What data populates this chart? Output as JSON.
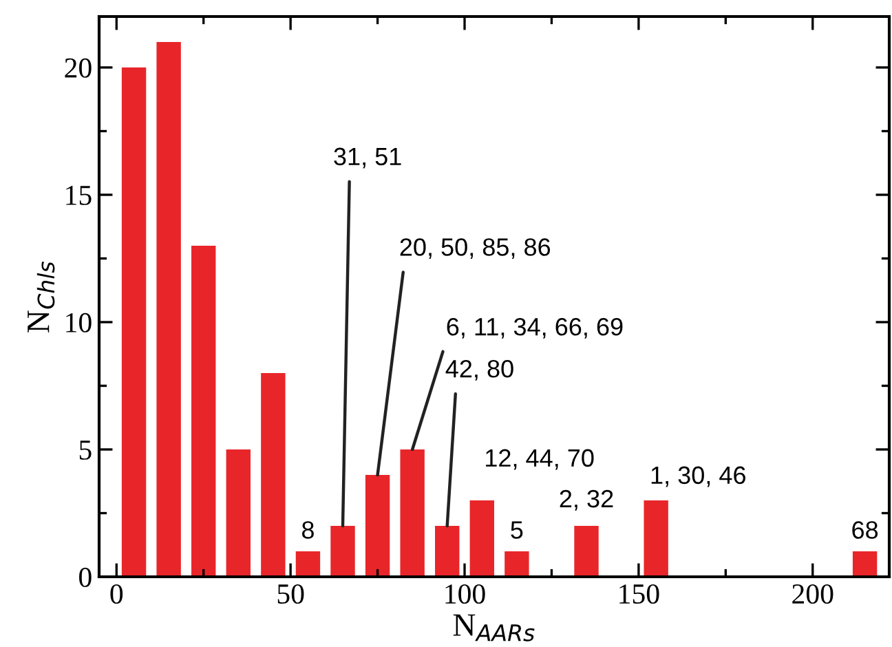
{
  "chart_data": {
    "type": "histogram",
    "xlabel": "N$_{AARs}$",
    "ylabel": "N$_{Chls}$",
    "bins": [
      0,
      10,
      20,
      30,
      40,
      50,
      60,
      70,
      80,
      90,
      100,
      110,
      120,
      130,
      140,
      150,
      160,
      170,
      180,
      190,
      200,
      210,
      220
    ],
    "values": [
      20,
      21,
      13,
      5,
      8,
      1,
      2,
      4,
      5,
      2,
      3,
      1,
      0,
      2,
      0,
      3,
      0,
      0,
      0,
      0,
      0,
      1
    ],
    "color": "#e8262a",
    "xlim": [
      -5,
      222
    ],
    "ylim": [
      0,
      22
    ],
    "xticks": [
      0,
      {
        "value": 25,
        "label": null
      },
      50,
      {
        "value": 75,
        "label": null
      },
      100,
      {
        "value": 125,
        "label": null
      },
      150,
      {
        "value": 175,
        "label": null
      },
      200
    ],
    "yticks": [
      0,
      {
        "value": 2.5,
        "label": null
      },
      5,
      {
        "value": 7.5,
        "label": null
      },
      10,
      {
        "value": 12.5,
        "label": null
      },
      15,
      {
        "value": 17.5,
        "label": null
      },
      20
    ],
    "annotations": [
      {
        "text": "8",
        "x": 55,
        "y": 1
      },
      {
        "text": "31, 51",
        "x": 65,
        "y": 2
      },
      {
        "text": "20, 50, 85, 86",
        "x": 75,
        "y": 4
      },
      {
        "text": "6, 11, 34, 66, 69",
        "x": 85,
        "y": 5
      },
      {
        "text": "42, 80",
        "x": 95,
        "y": 2
      },
      {
        "text": "12, 44, 70",
        "x": 105,
        "y": 3
      },
      {
        "text": "5",
        "x": 115,
        "y": 1
      },
      {
        "text": "2, 32",
        "x": 135,
        "y": 2
      },
      {
        "text": "1, 30, 46",
        "x": 155,
        "y": 3
      },
      {
        "text": "68",
        "x": 215,
        "y": 1
      }
    ],
    "grid": false,
    "legend": false
  }
}
